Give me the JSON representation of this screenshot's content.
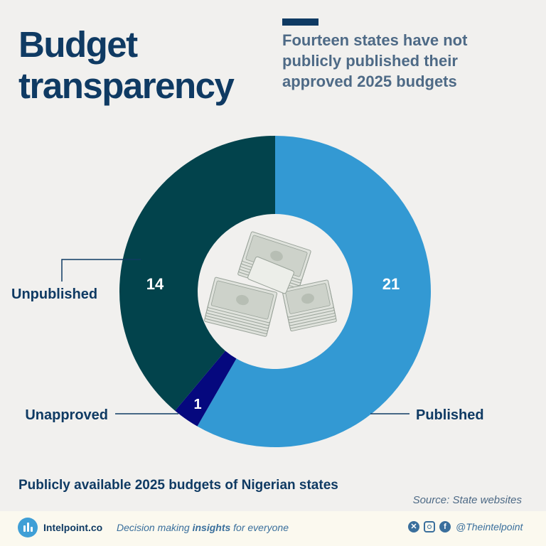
{
  "header": {
    "title": "Budget transparency",
    "subtitle": "Fourteen states have not publicly published their approved 2025 budgets"
  },
  "colors": {
    "published": "#3399d3",
    "unpublished": "#02434c",
    "unapproved": "#05087e",
    "title": "#0f3a63",
    "accent": "#0f3a63"
  },
  "chart_data": {
    "type": "pie",
    "variant": "donut",
    "categories": [
      "Published",
      "Unapproved",
      "Unpublished"
    ],
    "values": [
      21,
      1,
      14
    ],
    "value_labels": [
      "21",
      "1",
      "14"
    ],
    "legend": "callout labels around the ring",
    "center_icon": "banknote-stack-icon"
  },
  "caption": "Publicly available 2025 budgets of Nigerian states",
  "source": "Source: State websites",
  "footer": {
    "brand": "Intelpoint.co",
    "tagline_start": "Decision making ",
    "tagline_em": "insights",
    "tagline_end": " for everyone",
    "handle": "@Theintelpoint",
    "social_icons": [
      "x-icon",
      "instagram-icon",
      "facebook-icon"
    ]
  }
}
